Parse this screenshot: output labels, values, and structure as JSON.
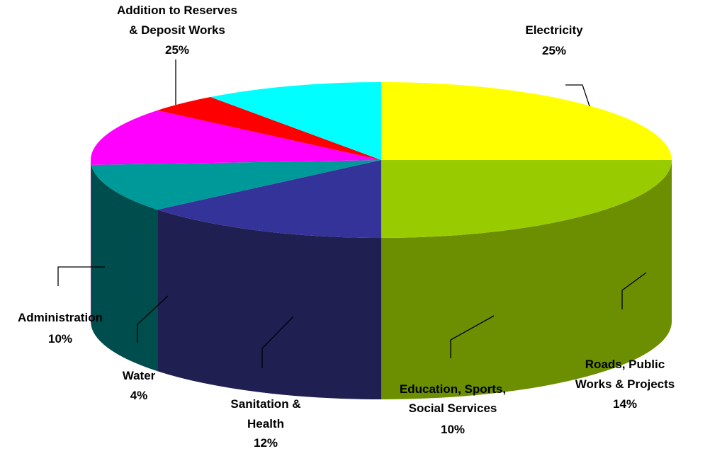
{
  "chart_data": {
    "type": "pie",
    "title": "",
    "slices": [
      {
        "label": "Electricity",
        "value": 25,
        "value_label": "25%",
        "color": "#99CC00",
        "side_color": "#6B8F00"
      },
      {
        "label": "Roads, Public Works & Projects",
        "value": 14,
        "value_label": "14%",
        "color": "#333399",
        "side_color": "#1F1F52"
      },
      {
        "label": "Education, Sports, Social Services",
        "value": 10,
        "value_label": "10%",
        "color": "#009999",
        "side_color": "#004D4D"
      },
      {
        "label": "Sanitation & Health",
        "value": 12,
        "value_label": "12%",
        "color": "#FF00FF",
        "side_color": "#800080"
      },
      {
        "label": "Water",
        "value": 4,
        "value_label": "4%",
        "color": "#FF0000",
        "side_color": "#800000"
      },
      {
        "label": "Administration",
        "value": 10,
        "value_label": "10%",
        "color": "#00FFFF",
        "side_color": "#008080"
      },
      {
        "label": "Addition to Reserves & Deposit Works",
        "value": 25,
        "value_label": "25%",
        "color": "#FFFF00",
        "side_color": "#808000"
      }
    ]
  }
}
